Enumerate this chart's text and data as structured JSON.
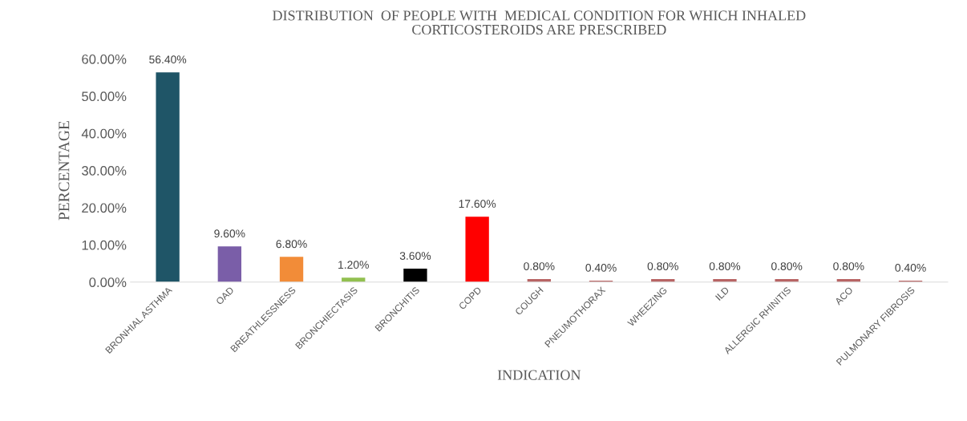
{
  "chart_data": {
    "type": "bar",
    "title": "DISTRIBUTION  OF PEOPLE WITH  MEDICAL CONDITION FOR WHICH INHALED\nCORTICOSTEROIDS ARE PRESCRIBED",
    "xlabel": "INDICATION",
    "ylabel": "PERCENTAGE",
    "categories": [
      "BRONHIAL ASTHMA",
      "OAD",
      "BREATHLESSNESS",
      "BRONCHIECTASIS",
      "BRONCHITIS",
      "COPD",
      "COUGH",
      "PNEUMOTHORAX",
      "WHEEZING",
      "ILD",
      "ALLERGIC RHINITIS",
      "ACO",
      "PULMONARY FIBROSIS"
    ],
    "values": [
      56.4,
      9.6,
      6.8,
      1.2,
      3.6,
      17.6,
      0.8,
      0.4,
      0.8,
      0.8,
      0.8,
      0.8,
      0.4
    ],
    "value_labels": [
      "56.40%",
      "9.60%",
      "6.80%",
      "1.20%",
      "3.60%",
      "17.60%",
      "0.80%",
      "0.40%",
      "0.80%",
      "0.80%",
      "0.80%",
      "0.80%",
      "0.40%"
    ],
    "colors": [
      "#1f5567",
      "#7a5ea8",
      "#f28c38",
      "#92c050",
      "#000000",
      "#ff0000",
      "#b86464",
      "#b86464",
      "#b86464",
      "#b86464",
      "#b86464",
      "#b86464",
      "#b86464"
    ],
    "ylim": [
      0,
      60
    ],
    "yticks": [
      {
        "value": 0,
        "label": "0.00%"
      },
      {
        "value": 10,
        "label": "10.00%"
      },
      {
        "value": 20,
        "label": "20.00%"
      },
      {
        "value": 30,
        "label": "30.00%"
      },
      {
        "value": 40,
        "label": "40.00%"
      },
      {
        "value": 50,
        "label": "50.00%"
      },
      {
        "value": 60,
        "label": "60.00%"
      }
    ],
    "grid": false
  }
}
